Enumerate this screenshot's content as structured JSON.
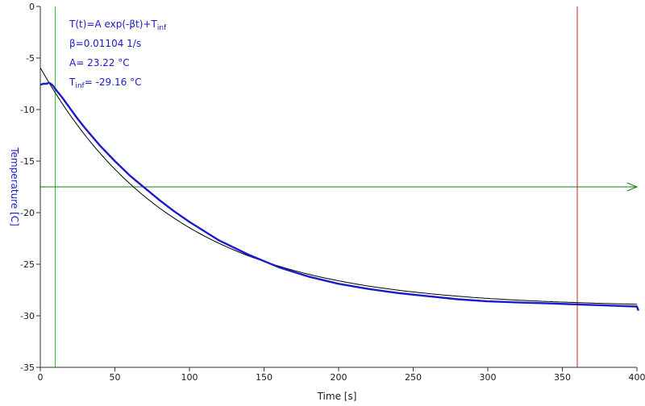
{
  "chart_data": {
    "type": "line",
    "xlabel": "Time [s]",
    "ylabel": "Temperature [C]",
    "xlim": [
      0,
      400
    ],
    "ylim": [
      -35,
      0
    ],
    "xticks": [
      0,
      50,
      100,
      150,
      200,
      250,
      300,
      350,
      400
    ],
    "yticks": [
      0,
      -5,
      -10,
      -15,
      -20,
      -25,
      -30,
      -35
    ],
    "grid": false,
    "annotation": {
      "formula_main": "T(t)=A exp(-βt)+T",
      "formula_sub": "inf",
      "beta_text": "β=0.01104 1/s",
      "a_text": "A= 23.22 °C",
      "tinf_main": "T",
      "tinf_sub": "inf",
      "tinf_value": "= -29.16 °C"
    },
    "model": {
      "A": 23.22,
      "beta": 0.01104,
      "T_inf": -29.16
    },
    "series": [
      {
        "color": "#1a1acc",
        "x": [
          0,
          2,
          4,
          6,
          8,
          10,
          15,
          20,
          25,
          30,
          40,
          50,
          60,
          70,
          80,
          90,
          100,
          120,
          140,
          160,
          180,
          200,
          220,
          240,
          260,
          280,
          300,
          320,
          340,
          360,
          380,
          400,
          401
        ],
        "y": [
          -7.6,
          -7.5,
          -7.5,
          -7.4,
          -7.6,
          -8.0,
          -8.9,
          -9.9,
          -10.9,
          -11.8,
          -13.5,
          -15.0,
          -16.4,
          -17.6,
          -18.8,
          -19.9,
          -20.9,
          -22.7,
          -24.1,
          -25.3,
          -26.2,
          -26.9,
          -27.4,
          -27.8,
          -28.1,
          -28.4,
          -28.6,
          -28.7,
          -28.8,
          -28.9,
          -29.0,
          -29.1,
          -29.5
        ]
      }
    ],
    "markers": {
      "vline_left_x": 10,
      "vline_right_x": 360,
      "hline_y": -17.5,
      "vline_left_color": "#22cc22",
      "vline_right_color": "#cc2222",
      "hline_color": "#1a7a1a",
      "fit_color": "#000000"
    }
  }
}
